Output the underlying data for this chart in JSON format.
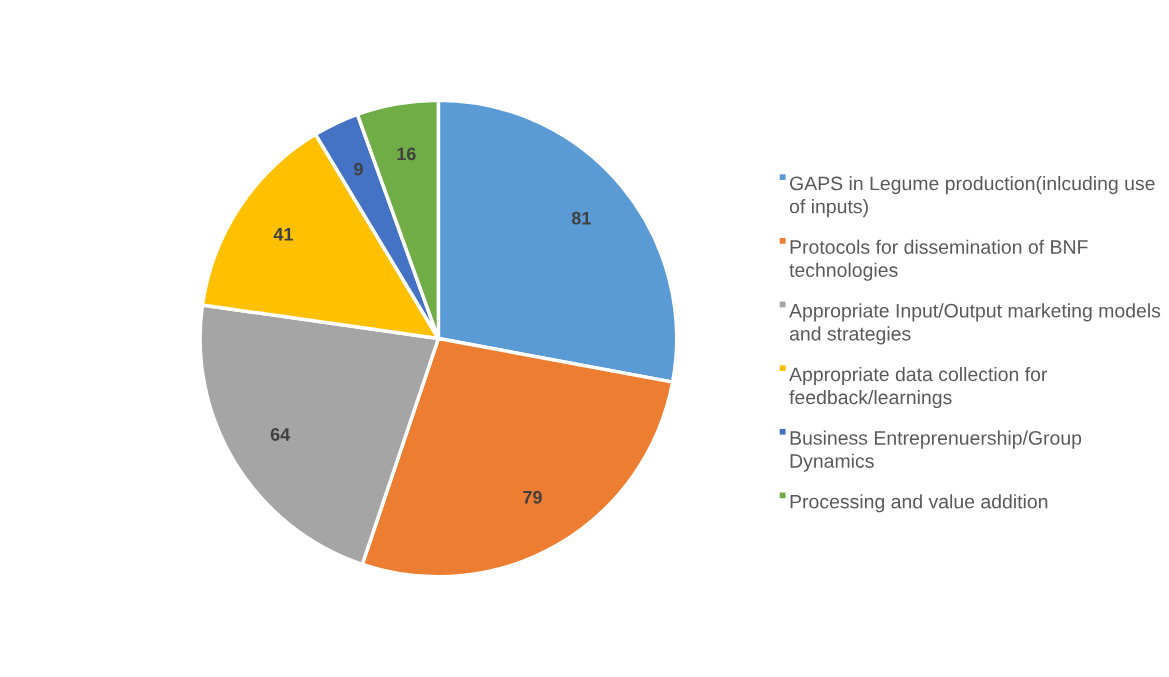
{
  "chart_data": {
    "type": "pie",
    "categories": [
      "GAPS in Legume production(inlcuding use of inputs)",
      "Protocols for dissemination of BNF technologies",
      "Appropriate Input/Output marketing models and strategies",
      "Appropriate data collection for feedback/learnings",
      "Business Entreprenuership/Group Dynamics",
      "Processing and value addition"
    ],
    "values": [
      81,
      79,
      64,
      41,
      9,
      16
    ],
    "colors": [
      "#5b9bd5",
      "#ed7d31",
      "#a5a5a5",
      "#ffc000",
      "#4472c4",
      "#70ad47"
    ],
    "data_labels": true,
    "legend": "right"
  }
}
